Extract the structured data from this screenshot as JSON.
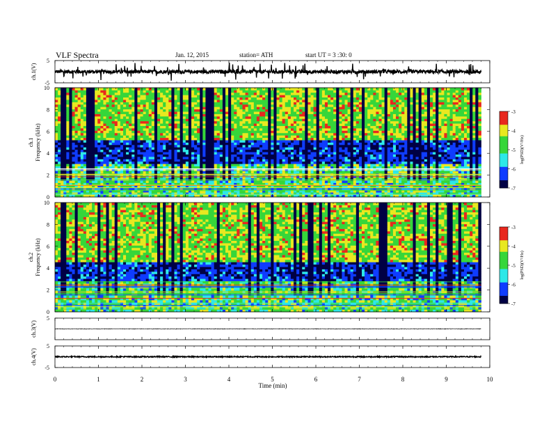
{
  "header": {
    "title": "VLF  Spectra",
    "date": "Jan.  12,  2015",
    "station": "station= ATH",
    "start": "start  UT  =   3  :30: 0"
  },
  "colorbar": {
    "label": "log(PSD)(V²/Hz)",
    "ticks": [
      "-3",
      "-4",
      "-5",
      "-6",
      "-7"
    ]
  },
  "x_axis": {
    "label": "Time  (min)",
    "ticks": [
      "0",
      "1",
      "2",
      "3",
      "4",
      "5",
      "6",
      "7",
      "8",
      "9",
      "10"
    ]
  },
  "colors": {
    "dark": "#000044",
    "blue": "#0f3cff",
    "cyan": "#2de8e8",
    "green": "#36d63a",
    "yellow": "#e8e820",
    "red": "#e8281e"
  },
  "chart_data": [
    {
      "type": "line",
      "panel": "ch1-waveform",
      "ylabel": "ch.1(V)",
      "ylim": [
        -5,
        5
      ],
      "yticks": [
        "5",
        "-5"
      ],
      "xlim": [
        0,
        10
      ],
      "x_end": 9.8,
      "baseline": 0,
      "noise_amplitude": 0.8,
      "spike_amplitude": 3.5
    },
    {
      "type": "heatmap",
      "panel": "ch1-spectrogram",
      "ylabel": "Frequency  (kHz)",
      "channel_label": "ch.1",
      "ylim": [
        0,
        10
      ],
      "yticks": [
        "0",
        "2",
        "4",
        "6",
        "8",
        "10"
      ],
      "xlim": [
        0,
        10
      ],
      "x_end": 9.8,
      "zlim": [
        -7,
        -3
      ],
      "dark_band_khz": [
        3.1,
        5.2
      ]
    },
    {
      "type": "heatmap",
      "panel": "ch2-spectrogram",
      "ylabel": "Frequency  (kHz)",
      "channel_label": "ch.2",
      "ylim": [
        0,
        10
      ],
      "yticks": [
        "0",
        "2",
        "4",
        "6",
        "8",
        "10"
      ],
      "xlim": [
        0,
        10
      ],
      "x_end": 9.8,
      "zlim": [
        -7,
        -3
      ],
      "dark_band_khz": [
        2.8,
        4.6
      ]
    },
    {
      "type": "line",
      "panel": "ch3-waveform",
      "ylabel": "ch.3(V)",
      "ylim": [
        -5,
        5
      ],
      "yticks": [
        "5"
      ],
      "xlim": [
        0,
        10
      ],
      "x_end": 9.8,
      "baseline": 0,
      "noise_amplitude": 0.15,
      "spike_amplitude": 0
    },
    {
      "type": "line",
      "panel": "ch4-waveform",
      "ylabel": "ch.4(V)",
      "ylim": [
        -5,
        5
      ],
      "yticks": [
        "5",
        "-5"
      ],
      "xlim": [
        0,
        10
      ],
      "x_end": 9.8,
      "baseline": 0,
      "noise_amplitude": 0.25,
      "spike_amplitude": 0
    }
  ]
}
